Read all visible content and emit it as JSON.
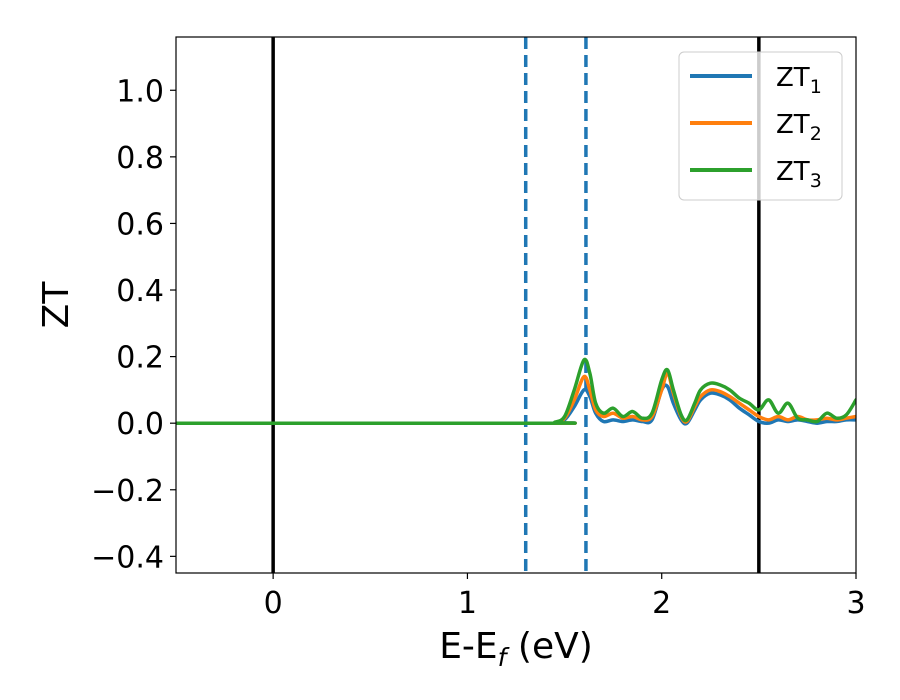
{
  "chart_data": {
    "type": "line",
    "xlabel": "E-E",
    "xlabel_sub": "f",
    "xlabel_unit": " (eV)",
    "ylabel": "ZT",
    "xlim": [
      -0.5,
      3.0
    ],
    "ylim": [
      -0.45,
      1.16
    ],
    "xticks": [
      {
        "value": 0,
        "label": "0"
      },
      {
        "value": 1,
        "label": "1"
      },
      {
        "value": 2,
        "label": "2"
      },
      {
        "value": 3,
        "label": "3"
      }
    ],
    "yticks": [
      {
        "value": -0.4,
        "label": "−0.4"
      },
      {
        "value": -0.2,
        "label": "−0.2"
      },
      {
        "value": 0.0,
        "label": "0.0"
      },
      {
        "value": 0.2,
        "label": "0.2"
      },
      {
        "value": 0.4,
        "label": "0.4"
      },
      {
        "value": 0.6,
        "label": "0.6"
      },
      {
        "value": 0.8,
        "label": "0.8"
      },
      {
        "value": 1.0,
        "label": "1.0"
      }
    ],
    "grid": false,
    "legend_position": "top-right",
    "vlines": [
      {
        "x": 0.0,
        "style": "solid",
        "color": "#000000"
      },
      {
        "x": 2.5,
        "style": "solid",
        "color": "#000000"
      },
      {
        "x": 1.3,
        "style": "dashed",
        "color": "#1f77b4"
      },
      {
        "x": 1.61,
        "style": "dashed",
        "color": "#1f77b4"
      }
    ],
    "series": [
      {
        "name": "ZT",
        "name_sub": "1",
        "color": "#1f77b4",
        "x": [
          -0.5,
          1.4,
          1.45,
          1.5,
          1.55,
          1.6,
          1.63,
          1.66,
          1.7,
          1.75,
          1.8,
          1.85,
          1.9,
          1.95,
          2.0,
          2.03,
          2.06,
          2.1,
          2.13,
          2.17,
          2.2,
          2.25,
          2.3,
          2.35,
          2.4,
          2.45,
          2.5,
          2.55,
          2.6,
          2.65,
          2.7,
          2.75,
          2.8,
          2.85,
          2.9,
          2.95,
          3.0
        ],
        "y": [
          0.0,
          0.0,
          0.002,
          0.01,
          0.05,
          0.1,
          0.08,
          0.03,
          0.005,
          0.01,
          0.005,
          0.01,
          0.005,
          0.01,
          0.1,
          0.11,
          0.06,
          0.01,
          0.0,
          0.04,
          0.07,
          0.09,
          0.085,
          0.07,
          0.045,
          0.025,
          0.005,
          0.0,
          0.01,
          0.005,
          0.01,
          0.005,
          0.0,
          0.005,
          0.005,
          0.01,
          0.01
        ]
      },
      {
        "name": "ZT",
        "name_sub": "2",
        "color": "#ff7f0e",
        "x": [
          -0.5,
          1.4,
          1.45,
          1.5,
          1.55,
          1.6,
          1.63,
          1.66,
          1.7,
          1.75,
          1.8,
          1.85,
          1.9,
          1.95,
          2.0,
          2.03,
          2.06,
          2.1,
          2.13,
          2.17,
          2.2,
          2.25,
          2.3,
          2.35,
          2.4,
          2.45,
          2.5,
          2.55,
          2.6,
          2.65,
          2.7,
          2.75,
          2.8,
          2.85,
          2.9,
          2.95,
          3.0
        ],
        "y": [
          0.0,
          0.0,
          0.002,
          0.015,
          0.07,
          0.14,
          0.1,
          0.04,
          0.02,
          0.03,
          0.015,
          0.02,
          0.01,
          0.02,
          0.1,
          0.15,
          0.09,
          0.02,
          0.005,
          0.05,
          0.08,
          0.1,
          0.095,
          0.08,
          0.06,
          0.04,
          0.02,
          0.01,
          0.02,
          0.01,
          0.02,
          0.01,
          0.01,
          0.015,
          0.01,
          0.015,
          0.02
        ]
      },
      {
        "name": "ZT",
        "name_sub": "3",
        "color": "#2ca02c",
        "x": [
          -0.5,
          1.4,
          1.45,
          1.5,
          1.55,
          1.6,
          1.63,
          1.66,
          1.7,
          1.75,
          1.8,
          1.85,
          1.9,
          1.95,
          2.0,
          2.03,
          2.06,
          2.1,
          2.13,
          2.17,
          2.2,
          2.25,
          2.3,
          2.35,
          2.4,
          2.45,
          2.5,
          2.55,
          2.6,
          2.65,
          2.7,
          2.75,
          2.8,
          2.85,
          2.9,
          2.95,
          3.0
        ],
        "y": [
          0.0,
          0.0,
          0.003,
          0.02,
          0.1,
          0.19,
          0.15,
          0.06,
          0.03,
          0.045,
          0.02,
          0.035,
          0.015,
          0.03,
          0.13,
          0.16,
          0.1,
          0.025,
          0.01,
          0.06,
          0.1,
          0.12,
          0.115,
          0.1,
          0.075,
          0.06,
          0.04,
          0.07,
          0.03,
          0.06,
          0.015,
          0.01,
          0.005,
          0.03,
          0.015,
          0.025,
          0.07
        ]
      }
    ]
  }
}
